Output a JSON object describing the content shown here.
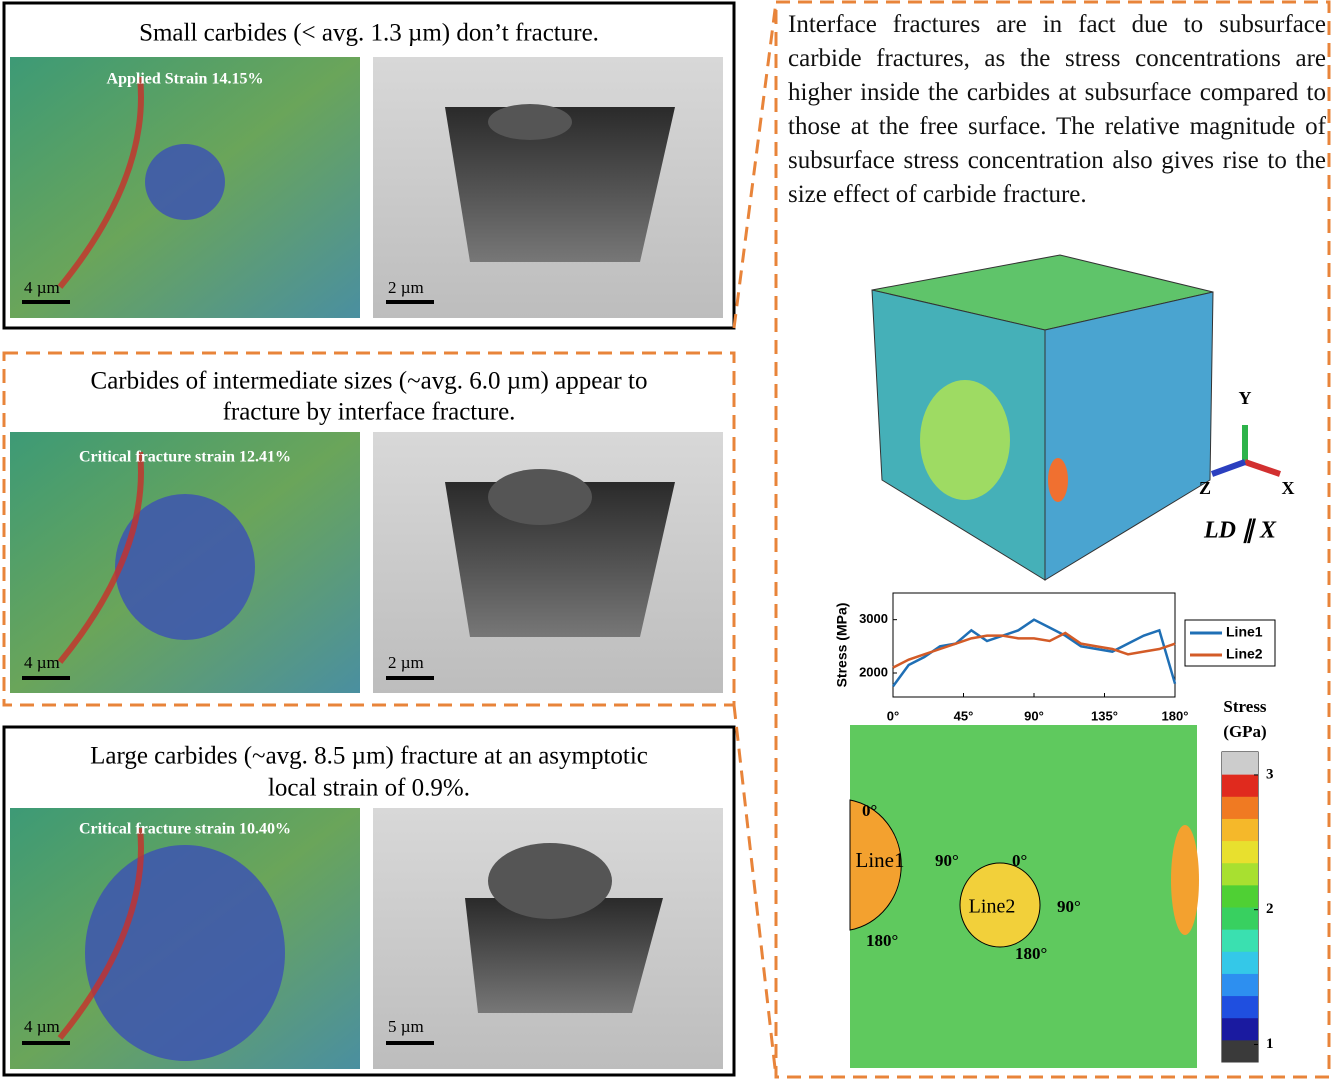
{
  "panels": [
    {
      "caption": [
        "Small carbides (< avg. 1.3 µm) don’t fracture."
      ],
      "map_label": "Applied Strain 14.15%",
      "map_scale": "4 µm",
      "sem_scale": "2 µm"
    },
    {
      "caption": [
        "Carbides of intermediate sizes (~avg. 6.0 µm) appear to",
        "fracture by interface fracture."
      ],
      "map_label": "Critical  fracture strain 12.41%",
      "map_scale": "4 µm",
      "sem_scale": "2 µm"
    },
    {
      "caption": [
        "Large carbides (~avg. 8.5 µm) fracture at an asymptotic",
        "local strain of 0.9%."
      ],
      "map_label": "Critical fracture strain 10.40%",
      "map_scale": "4 µm",
      "sem_scale": "5 µm"
    }
  ],
  "description": "Interface fractures are in fact due to subsurface carbide fractures, as the stress concentrations are higher inside the carbides at subsurface compared to those at the free surface. The relative magnitude of subsurface stress concentration also gives rise to the size effect of carbide fracture.",
  "cube": {
    "axis_y": "Y",
    "axis_z": "Z",
    "axis_x": "X",
    "label": "LD ∥ X"
  },
  "stress_plot": {
    "type": "line",
    "y_label": "Stress (MPa)",
    "x": [
      0,
      10,
      20,
      30,
      40,
      50,
      60,
      70,
      80,
      90,
      100,
      110,
      120,
      130,
      140,
      150,
      160,
      170,
      180
    ],
    "series": [
      {
        "name": "Line1",
        "color": "#1f6fb5",
        "values": [
          1750,
          2150,
          2300,
          2500,
          2550,
          2800,
          2600,
          2700,
          2800,
          3000,
          2850,
          2700,
          2500,
          2450,
          2400,
          2550,
          2700,
          2800,
          1800
        ]
      },
      {
        "name": "Line2",
        "color": "#d35b27",
        "values": [
          2100,
          2250,
          2350,
          2450,
          2550,
          2650,
          2700,
          2700,
          2650,
          2650,
          2600,
          2750,
          2550,
          2500,
          2450,
          2350,
          2400,
          2450,
          2550
        ]
      }
    ],
    "xlim": [
      0,
      180
    ],
    "ylim": [
      1550,
      3500
    ],
    "yticks": [
      2000,
      3000
    ],
    "xticks": [
      {
        "value": 0,
        "label": "0°"
      },
      {
        "value": 45,
        "label": "45°"
      },
      {
        "value": 90,
        "label": "90°"
      },
      {
        "value": 135,
        "label": "135°"
      },
      {
        "value": 180,
        "label": "180°"
      }
    ]
  },
  "stress_map": {
    "labels": [
      "0°",
      "Line1",
      "90°",
      "180°",
      "0°",
      "Line2",
      "90°",
      "180°"
    ],
    "colorbar": {
      "title": [
        "Stress",
        "(GPa)"
      ],
      "clim": [
        0.87,
        3.17
      ],
      "ticks": [
        1,
        2,
        3
      ]
    }
  }
}
